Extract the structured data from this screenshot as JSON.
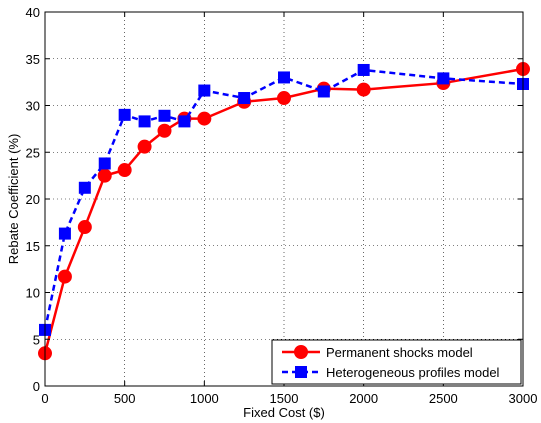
{
  "chart_data": {
    "type": "line",
    "title": "",
    "xlabel": "Fixed Cost ($)",
    "ylabel": "Rebate Coefficient (%)",
    "xlim": [
      0,
      3000
    ],
    "ylim": [
      0,
      40
    ],
    "xticks": [
      0,
      500,
      1000,
      1500,
      2000,
      2500,
      3000
    ],
    "yticks": [
      0,
      5,
      10,
      15,
      20,
      25,
      30,
      35,
      40
    ],
    "xtick_labels": [
      "0",
      "500",
      "1000",
      "1500",
      "2000",
      "2500",
      "3000"
    ],
    "ytick_labels": [
      "0",
      "5",
      "10",
      "15",
      "20",
      "25",
      "30",
      "35",
      "40"
    ],
    "grid": true,
    "legend_position": "bottom-right",
    "series": [
      {
        "name": "Permanent shocks model",
        "color": "#ff0000",
        "line_style": "solid",
        "marker": "circle",
        "x": [
          0,
          125,
          250,
          375,
          500,
          625,
          750,
          875,
          1000,
          1250,
          1500,
          1750,
          2000,
          2500,
          3000
        ],
        "y": [
          3.5,
          11.7,
          17.0,
          22.5,
          23.1,
          25.6,
          27.3,
          28.6,
          28.6,
          30.4,
          30.8,
          31.8,
          31.7,
          32.4,
          33.9
        ]
      },
      {
        "name": "Heterogeneous profiles model",
        "color": "#0000ff",
        "line_style": "dashed",
        "marker": "square",
        "x": [
          0,
          125,
          250,
          375,
          500,
          625,
          750,
          875,
          1000,
          1250,
          1500,
          1750,
          2000,
          2500,
          3000
        ],
        "y": [
          6.0,
          16.3,
          21.2,
          23.8,
          29.0,
          28.3,
          28.9,
          28.3,
          31.6,
          30.8,
          33.0,
          31.5,
          33.8,
          32.9,
          32.3
        ]
      }
    ]
  }
}
